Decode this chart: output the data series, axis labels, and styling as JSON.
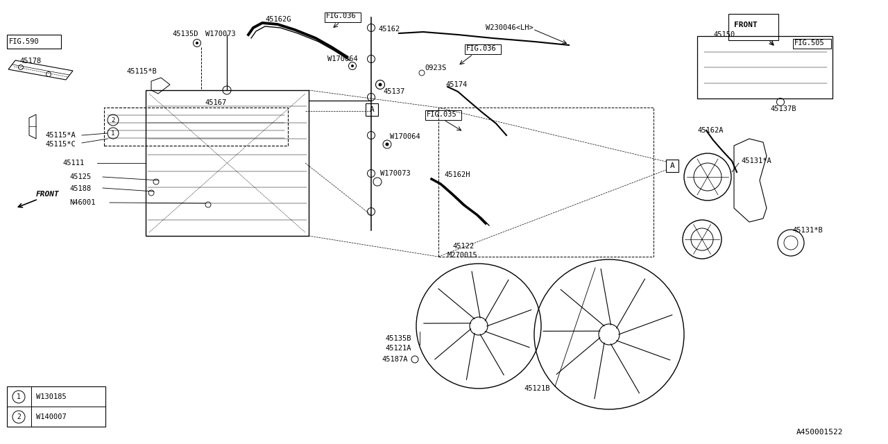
{
  "bg_color": "#ffffff",
  "line_color": "#000000",
  "image_id": "A450001522",
  "legend": [
    {
      "symbol": "1",
      "code": "W130185"
    },
    {
      "symbol": "2",
      "code": "W140007"
    }
  ]
}
